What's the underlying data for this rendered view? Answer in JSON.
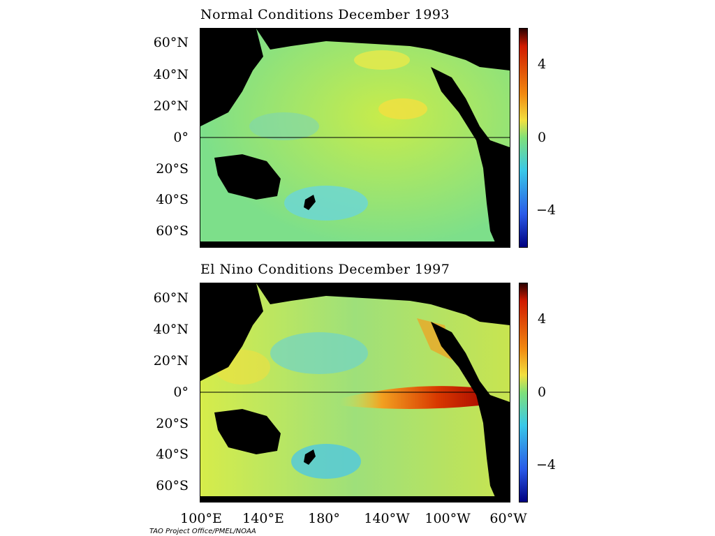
{
  "panels": [
    {
      "title": "Normal Conditions December 1993"
    },
    {
      "title": "El Nino Conditions December 1997"
    }
  ],
  "lat_labels": [
    "60°N",
    "40°N",
    "20°N",
    "0°",
    "20°S",
    "40°S",
    "60°S"
  ],
  "lon_labels": [
    "100°E",
    "140°E",
    "180°",
    "140°W",
    "100°W",
    "60°W"
  ],
  "colorbar_labels": [
    "4",
    "0",
    "−4"
  ],
  "colorbar_range": [
    -6,
    6
  ],
  "colors": {
    "land": "#000000",
    "ocean_base": "#7fe07a",
    "warm": "#d41a00",
    "cool": "#38c8e8",
    "equator_line": "#000000"
  },
  "credit": "TAO Project Office/PMEL/NOAA"
}
